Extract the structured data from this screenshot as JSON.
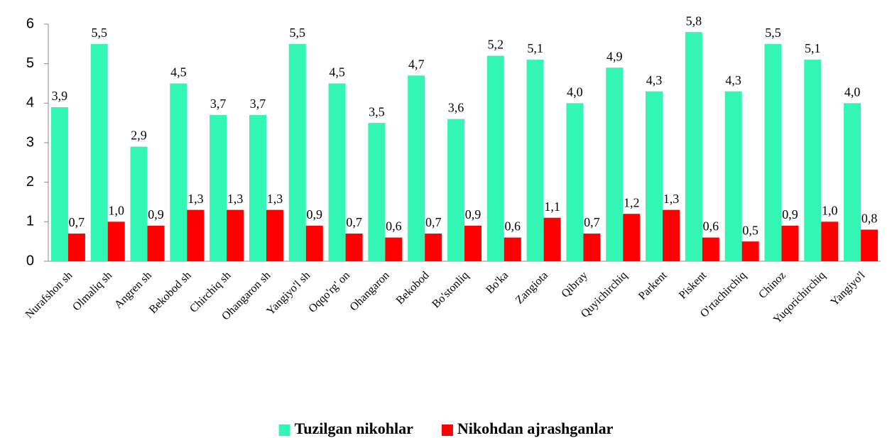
{
  "chart_data": {
    "type": "bar",
    "categories": [
      "Nurafshon sh",
      "Olmaliq sh",
      "Angren sh",
      "Bekobod sh",
      "Chirchiq sh",
      "Ohangaron sh",
      "Yangiyo'l sh",
      "Oqqo'rg' on",
      "Ohangaron",
      "Bekobod",
      "Bo'stonliq",
      "Bo'ka",
      "Zangiota",
      "Qibray",
      "Quyichirchiq",
      "Parkent",
      "Piskent",
      "O'rtachirchiq",
      "Chinoz",
      "Yuqorichirchiq",
      "Yangiyo'l"
    ],
    "series": [
      {
        "name": "Tuzilgan nikohlar",
        "color": "#33f5b4",
        "values": [
          3.9,
          5.5,
          2.9,
          4.5,
          3.7,
          3.7,
          5.5,
          4.5,
          3.5,
          4.7,
          3.6,
          5.2,
          5.1,
          4.0,
          4.9,
          4.3,
          5.8,
          4.3,
          5.5,
          5.1,
          4.0
        ],
        "value_labels": [
          "3,9",
          "5,5",
          "2,9",
          "4,5",
          "3,7",
          "3,7",
          "5,5",
          "4,5",
          "3,5",
          "4,7",
          "3,6",
          "5,2",
          "5,1",
          "4,0",
          "4,9",
          "4,3",
          "5,8",
          "4,3",
          "5,5",
          "5,1",
          "4,0"
        ]
      },
      {
        "name": "Nikohdan ajrashganlar",
        "color": "#ff0000",
        "values": [
          0.7,
          1.0,
          0.9,
          1.3,
          1.3,
          1.3,
          0.9,
          0.7,
          0.6,
          0.7,
          0.9,
          0.6,
          1.1,
          0.7,
          1.2,
          1.3,
          0.6,
          0.5,
          0.9,
          1.0,
          0.8
        ],
        "value_labels": [
          "0,7",
          "1,0",
          "0,9",
          "1,3",
          "1,3",
          "1,3",
          "0,9",
          "0,7",
          "0,6",
          "0,7",
          "0,9",
          "0,6",
          "1,1",
          "0,7",
          "1,2",
          "1,3",
          "0,6",
          "0,5",
          "0,9",
          "1,0",
          "0,8"
        ]
      }
    ],
    "ylim": [
      0,
      6
    ],
    "yticks": [
      0,
      1,
      2,
      3,
      4,
      5,
      6
    ],
    "grid": false,
    "legend": "bottom"
  }
}
